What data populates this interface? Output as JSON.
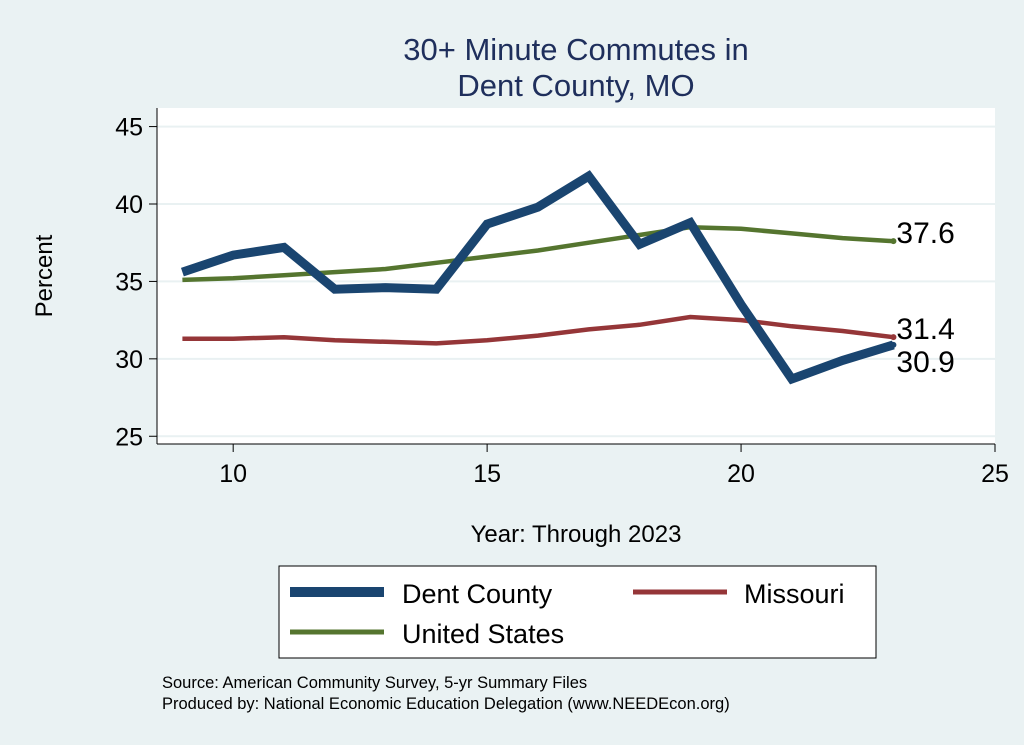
{
  "chart_data": {
    "type": "line",
    "title": [
      "30+ Minute Commutes in",
      "Dent County, MO"
    ],
    "xlabel": "Year: Through 2023",
    "ylabel": "Percent",
    "xlim": [
      8.5,
      25
    ],
    "ylim": [
      24.5,
      46.2
    ],
    "xticks": [
      10,
      15,
      20,
      25
    ],
    "yticks": [
      25,
      30,
      35,
      40,
      45
    ],
    "grid": true,
    "series": [
      {
        "name": "Dent County",
        "color": "#1a4570",
        "x": [
          9,
          10,
          11,
          12,
          13,
          14,
          15,
          16,
          17,
          18,
          19,
          20,
          21,
          22,
          23
        ],
        "values": [
          35.6,
          36.7,
          37.2,
          34.5,
          34.6,
          34.5,
          38.7,
          39.8,
          41.8,
          37.4,
          38.8,
          33.5,
          28.7,
          29.9,
          30.9
        ],
        "end_label": "30.9"
      },
      {
        "name": "Missouri",
        "color": "#953638",
        "x": [
          9,
          10,
          11,
          12,
          13,
          14,
          15,
          16,
          17,
          18,
          19,
          20,
          21,
          22,
          23
        ],
        "values": [
          31.3,
          31.3,
          31.4,
          31.2,
          31.1,
          31.0,
          31.2,
          31.5,
          31.9,
          32.2,
          32.7,
          32.5,
          32.1,
          31.8,
          31.4
        ],
        "end_label": "31.4"
      },
      {
        "name": "United States",
        "color": "#55752f",
        "x": [
          9,
          10,
          11,
          12,
          13,
          14,
          15,
          16,
          17,
          18,
          19,
          20,
          21,
          22,
          23
        ],
        "values": [
          35.1,
          35.2,
          35.4,
          35.6,
          35.8,
          36.2,
          36.6,
          37.0,
          37.5,
          38.0,
          38.5,
          38.4,
          38.1,
          37.8,
          37.6
        ],
        "end_label": "37.6"
      }
    ],
    "legend": {
      "placement": "bottom",
      "entries": [
        "Dent County",
        "Missouri",
        "United States"
      ]
    },
    "notes": [
      "Source: American Community Survey, 5-yr Summary Files",
      "Produced by: National Economic Education Delegation (www.NEEDEcon.org)"
    ]
  },
  "colors": {
    "background": "#eaf2f3",
    "plot_background": "#ffffff",
    "grid": "#e9f1f2",
    "title": "#1f2f5c"
  }
}
